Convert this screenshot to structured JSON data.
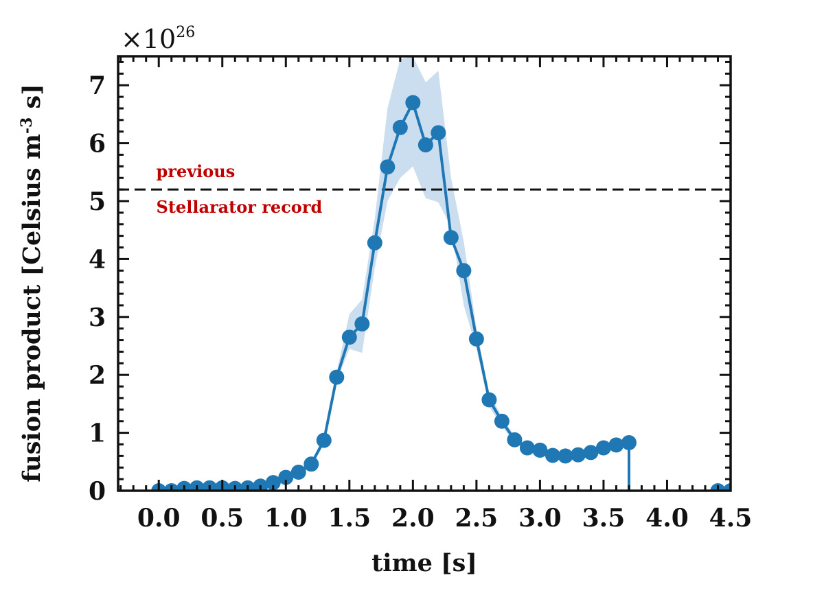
{
  "chart_data": {
    "type": "line",
    "xlabel": "time [s]",
    "ylabel": "fusion product [Celsius m",
    "ylabel_sup": "-3",
    "ylabel_end": " s]",
    "y_multiplier": "×10",
    "y_multiplier_exp": "26",
    "xlim": [
      -0.32,
      4.5
    ],
    "ylim": [
      0,
      7.5
    ],
    "xticks": [
      "0.0",
      "0.5",
      "1.0",
      "1.5",
      "2.0",
      "2.5",
      "3.0",
      "3.5",
      "4.0",
      "4.5"
    ],
    "yticks": [
      "0",
      "1",
      "2",
      "3",
      "4",
      "5",
      "6",
      "7"
    ],
    "reference_line": {
      "value": 5.2,
      "label_above": "previous",
      "label_below": "Stellarator record",
      "label_color": "#c00000"
    },
    "series_color": "#1f77b4",
    "band_color": "#b9d3ea",
    "series": [
      {
        "x": [
          0.0,
          0.1,
          0.2,
          0.3,
          0.4,
          0.5,
          0.6,
          0.7,
          0.8,
          0.9,
          1.0,
          1.1,
          1.2,
          1.3,
          1.4,
          1.5,
          1.6,
          1.7,
          1.8,
          1.9,
          2.0,
          2.1,
          2.2,
          2.3,
          2.4,
          2.5,
          2.6,
          2.7,
          2.8,
          2.9,
          3.0,
          3.1,
          3.2,
          3.3,
          3.4,
          3.5,
          3.6,
          3.7
        ],
        "y": [
          0.0,
          0.0,
          0.04,
          0.05,
          0.05,
          0.05,
          0.04,
          0.05,
          0.08,
          0.14,
          0.23,
          0.32,
          0.46,
          0.87,
          1.96,
          2.65,
          2.88,
          4.28,
          5.59,
          6.27,
          6.7,
          5.97,
          6.18,
          4.37,
          3.8,
          2.62,
          1.57,
          1.2,
          0.88,
          0.74,
          0.7,
          0.61,
          0.6,
          0.62,
          0.66,
          0.74,
          0.79,
          0.83
        ],
        "lower": [
          0.0,
          0.0,
          0.03,
          0.04,
          0.04,
          0.04,
          0.03,
          0.04,
          0.07,
          0.12,
          0.2,
          0.28,
          0.42,
          0.8,
          1.88,
          2.45,
          2.38,
          3.85,
          5.0,
          5.4,
          5.6,
          5.05,
          4.98,
          4.55,
          3.2,
          2.45,
          1.45,
          1.12,
          0.82,
          0.7,
          0.66,
          0.58,
          0.57,
          0.59,
          0.63,
          0.7,
          0.75,
          0.78
        ],
        "upper": [
          0.0,
          0.0,
          0.05,
          0.06,
          0.06,
          0.06,
          0.05,
          0.06,
          0.09,
          0.16,
          0.26,
          0.36,
          0.5,
          0.94,
          2.05,
          3.05,
          3.3,
          4.7,
          6.6,
          7.45,
          7.5,
          7.05,
          7.25,
          5.4,
          4.3,
          2.8,
          1.68,
          1.28,
          0.94,
          0.78,
          0.74,
          0.64,
          0.63,
          0.65,
          0.7,
          0.8,
          0.86,
          0.9
        ]
      },
      {
        "x": [
          4.4,
          4.5
        ],
        "y": [
          0.0,
          0.0
        ]
      }
    ]
  }
}
